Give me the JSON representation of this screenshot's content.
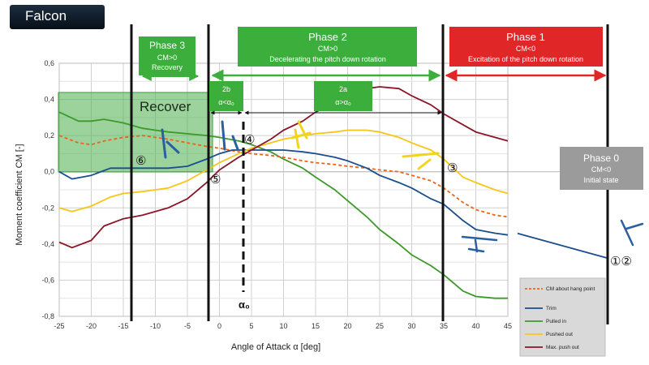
{
  "app_title": "Falcon",
  "chart_data": {
    "type": "line",
    "xlabel": "Angle of Attack α [deg]",
    "ylabel": "Moment coefficient CM [-]",
    "xlim": [
      -25,
      45
    ],
    "ylim": [
      -0.8,
      0.6
    ],
    "xticks": [
      "-25",
      "-20",
      "-15",
      "-10",
      "-5",
      "0",
      "5",
      "10",
      "15",
      "20",
      "25",
      "30",
      "35",
      "40",
      "45"
    ],
    "yticks": [
      "0,6",
      "0,4",
      "0,2",
      "0,0",
      "-0,2",
      "-0,4",
      "-0,6",
      "-0,8"
    ],
    "grid": true,
    "legend_position": "bottom-right",
    "series": [
      {
        "name": "Pulled in",
        "color": "#3c9a28",
        "style": "solid",
        "x": [
          -25,
          -22,
          -20,
          -18,
          -15,
          -12,
          -10,
          -8,
          -5,
          -2,
          0,
          3,
          5,
          8,
          10,
          13,
          15,
          18,
          20,
          23,
          25,
          28,
          30,
          33,
          35,
          38,
          40,
          43,
          45
        ],
        "y": [
          0.33,
          0.28,
          0.28,
          0.29,
          0.27,
          0.24,
          0.23,
          0.22,
          0.21,
          0.2,
          0.19,
          0.17,
          0.15,
          0.11,
          0.07,
          0.02,
          -0.03,
          -0.1,
          -0.16,
          -0.25,
          -0.32,
          -0.4,
          -0.46,
          -0.52,
          -0.57,
          -0.66,
          -0.69,
          -0.7,
          -0.7
        ]
      },
      {
        "name": "CM about hang point",
        "color": "#e8651a",
        "style": "dashed",
        "x": [
          -25,
          -22,
          -20,
          -18,
          -15,
          -12,
          -10,
          -8,
          -5,
          -2,
          0,
          3,
          5,
          8,
          10,
          13,
          15,
          18,
          20,
          23,
          25,
          28,
          30,
          33,
          35,
          38,
          40,
          43,
          45
        ],
        "y": [
          0.2,
          0.16,
          0.15,
          0.17,
          0.19,
          0.2,
          0.19,
          0.18,
          0.16,
          0.14,
          0.13,
          0.11,
          0.1,
          0.09,
          0.08,
          0.06,
          0.05,
          0.04,
          0.03,
          0.02,
          0.01,
          0.0,
          -0.02,
          -0.05,
          -0.09,
          -0.17,
          -0.21,
          -0.24,
          -0.25
        ]
      },
      {
        "name": "Trim",
        "color": "#1a4e8c",
        "style": "solid",
        "x": [
          -25,
          -23,
          -20,
          -17,
          -15,
          -12,
          -10,
          -8,
          -5,
          -2,
          0,
          2,
          3,
          5,
          8,
          10,
          13,
          15,
          18,
          20,
          23,
          25,
          28,
          30,
          33,
          35,
          38,
          40,
          43,
          45
        ],
        "y": [
          0.0,
          -0.04,
          -0.02,
          0.02,
          0.02,
          0.02,
          0.02,
          0.02,
          0.03,
          0.07,
          0.1,
          0.12,
          0.12,
          0.12,
          0.12,
          0.12,
          0.11,
          0.1,
          0.08,
          0.06,
          0.02,
          -0.02,
          -0.06,
          -0.09,
          -0.15,
          -0.18,
          -0.27,
          -0.32,
          -0.34,
          -0.35
        ]
      },
      {
        "name": "Pushed out",
        "color": "#f7c617",
        "style": "solid",
        "x": [
          -25,
          -23,
          -20,
          -17,
          -15,
          -12,
          -10,
          -8,
          -5,
          -2,
          0,
          3,
          5,
          8,
          10,
          13,
          15,
          18,
          20,
          23,
          25,
          28,
          30,
          33,
          35,
          38,
          40,
          43,
          45
        ],
        "y": [
          -0.2,
          -0.22,
          -0.19,
          -0.14,
          -0.12,
          -0.11,
          -0.1,
          -0.09,
          -0.05,
          0.01,
          0.05,
          0.1,
          0.13,
          0.16,
          0.18,
          0.2,
          0.21,
          0.22,
          0.23,
          0.23,
          0.22,
          0.19,
          0.16,
          0.12,
          0.07,
          -0.03,
          -0.06,
          -0.1,
          -0.12
        ]
      },
      {
        "name": "Max. push out",
        "color": "#8a1526",
        "style": "solid",
        "x": [
          -25,
          -23,
          -20,
          -18,
          -15,
          -12,
          -10,
          -8,
          -5,
          -2,
          0,
          3,
          5,
          8,
          10,
          13,
          15,
          18,
          20,
          23,
          25,
          28,
          30,
          33,
          35,
          38,
          40,
          43,
          45
        ],
        "y": [
          -0.39,
          -0.42,
          -0.38,
          -0.3,
          -0.26,
          -0.24,
          -0.22,
          -0.2,
          -0.15,
          -0.06,
          0.01,
          0.08,
          0.12,
          0.18,
          0.23,
          0.28,
          0.33,
          0.38,
          0.42,
          0.46,
          0.47,
          0.46,
          0.42,
          0.37,
          0.32,
          0.26,
          0.22,
          0.19,
          0.17
        ]
      }
    ],
    "extra_line": {
      "x": [
        45,
        55
      ],
      "y": [
        -0.35,
        -0.48
      ],
      "color": "#1a4e8c"
    }
  },
  "phases": [
    {
      "title": "Phase 3",
      "line1": "CM>0",
      "line2": "Recovery",
      "color": "#3cae3c"
    },
    {
      "title": "Phase 2",
      "line1": "CM>0",
      "line2": "Decelerating the pitch down rotation",
      "color": "#3cae3c"
    },
    {
      "title": "Phase 1",
      "line1": "CM<0",
      "line2": "Excitation of the pitch down rotation",
      "color": "#e02626"
    },
    {
      "title": "Phase 0",
      "line1": "CM<0",
      "line2": "Initial state",
      "color": "#9b9b9b"
    }
  ],
  "sub_phases": [
    {
      "title": "2b",
      "line": "α<α₀",
      "color": "#3cae3c"
    },
    {
      "title": "2a",
      "line": "α>α₀",
      "color": "#3cae3c"
    }
  ],
  "recover_label": "Recover",
  "alpha0_label": "α₀",
  "legend": {
    "items": [
      {
        "label": "CM about hang point",
        "color": "#e8651a",
        "dashed": true
      },
      {
        "label": "Trim",
        "color": "#1a4e8c",
        "dashed": false
      },
      {
        "label": "Pulled in",
        "color": "#3c9a28",
        "dashed": false
      },
      {
        "label": "Pushed out",
        "color": "#f7c617",
        "dashed": false
      },
      {
        "label": "Max. push out",
        "color": "#8a1526",
        "dashed": false
      }
    ]
  },
  "markers": [
    "①②",
    "③",
    "④",
    "⑤",
    "⑥"
  ],
  "icon_names": [
    "glider-icon"
  ]
}
